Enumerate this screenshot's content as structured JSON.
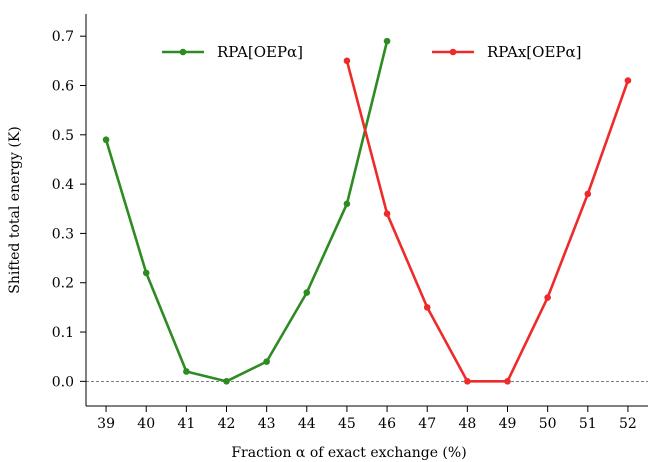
{
  "chart_data": {
    "type": "line",
    "xlabel": "Fraction α of exact exchange (%)",
    "ylabel": "Shifted total energy (K)",
    "xlim": [
      38.5,
      52.5
    ],
    "ylim": [
      -0.05,
      0.745
    ],
    "xticks": [
      39,
      40,
      41,
      42,
      43,
      44,
      45,
      46,
      47,
      48,
      49,
      50,
      51,
      52
    ],
    "yticks": [
      0.0,
      0.1,
      0.2,
      0.3,
      0.4,
      0.5,
      0.6,
      0.7
    ],
    "ytick_labels": [
      "0.0",
      "0.1",
      "0.2",
      "0.3",
      "0.4",
      "0.5",
      "0.6",
      "0.7"
    ],
    "reference_line": {
      "y": 0.0,
      "style": "dashed",
      "color": "#555555"
    },
    "legend_position": "top",
    "series": [
      {
        "name": "RPA[OEPα]",
        "color": "#2e8b22",
        "x": [
          39,
          40,
          41,
          42,
          43,
          44,
          45,
          46
        ],
        "y": [
          0.49,
          0.22,
          0.02,
          0.0,
          0.04,
          0.18,
          0.36,
          0.69
        ]
      },
      {
        "name": "RPAx[OEPα]",
        "color": "#ee2a2a",
        "x": [
          45,
          46,
          47,
          48,
          49,
          50,
          51,
          52
        ],
        "y": [
          0.65,
          0.34,
          0.15,
          0.0,
          0.0,
          0.17,
          0.38,
          0.61
        ]
      }
    ]
  }
}
